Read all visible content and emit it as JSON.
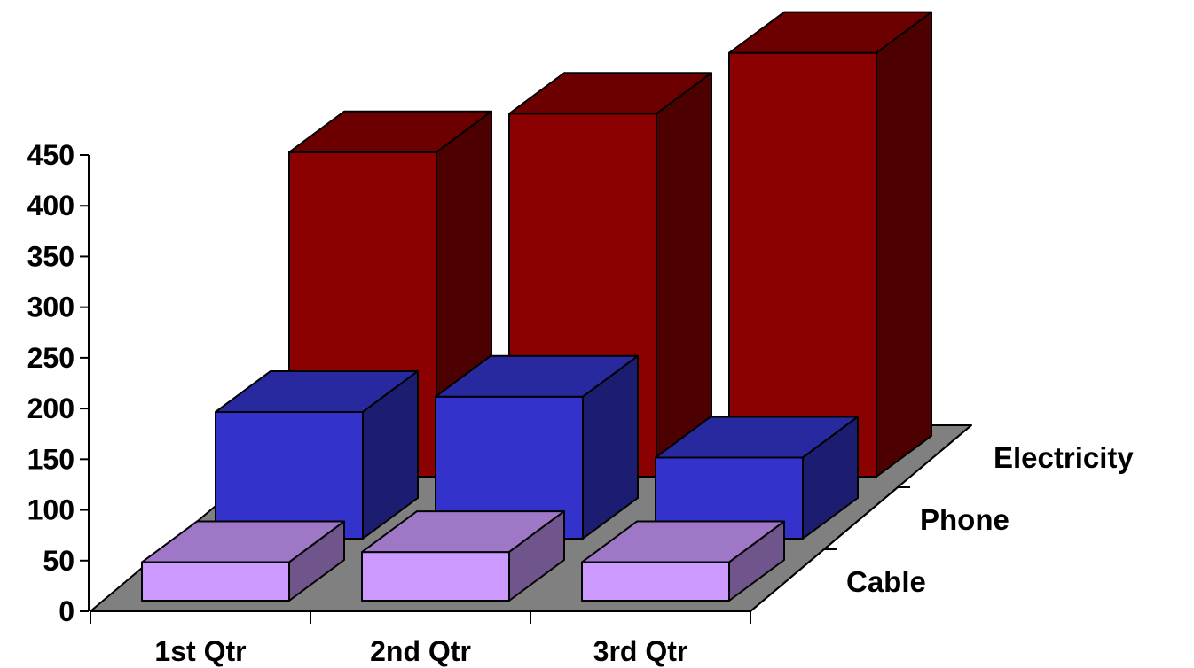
{
  "chart_data": {
    "type": "bar",
    "subtype": "3d-column",
    "categories": [
      "1st Qtr",
      "2nd Qtr",
      "3rd Qtr"
    ],
    "series": [
      {
        "name": "Cable",
        "values": [
          38,
          48,
          38
        ],
        "color": "#CC99FF"
      },
      {
        "name": "Phone",
        "values": [
          125,
          140,
          80
        ],
        "color": "#3333CC"
      },
      {
        "name": "Electricity",
        "values": [
          320,
          358,
          418
        ],
        "color": "#8B0000"
      }
    ],
    "ylim": [
      0,
      450
    ],
    "yticks": [
      0,
      50,
      100,
      150,
      200,
      250,
      300,
      350,
      400,
      450
    ],
    "floor_color": "#808080",
    "title": "",
    "xlabel": "",
    "ylabel": ""
  }
}
